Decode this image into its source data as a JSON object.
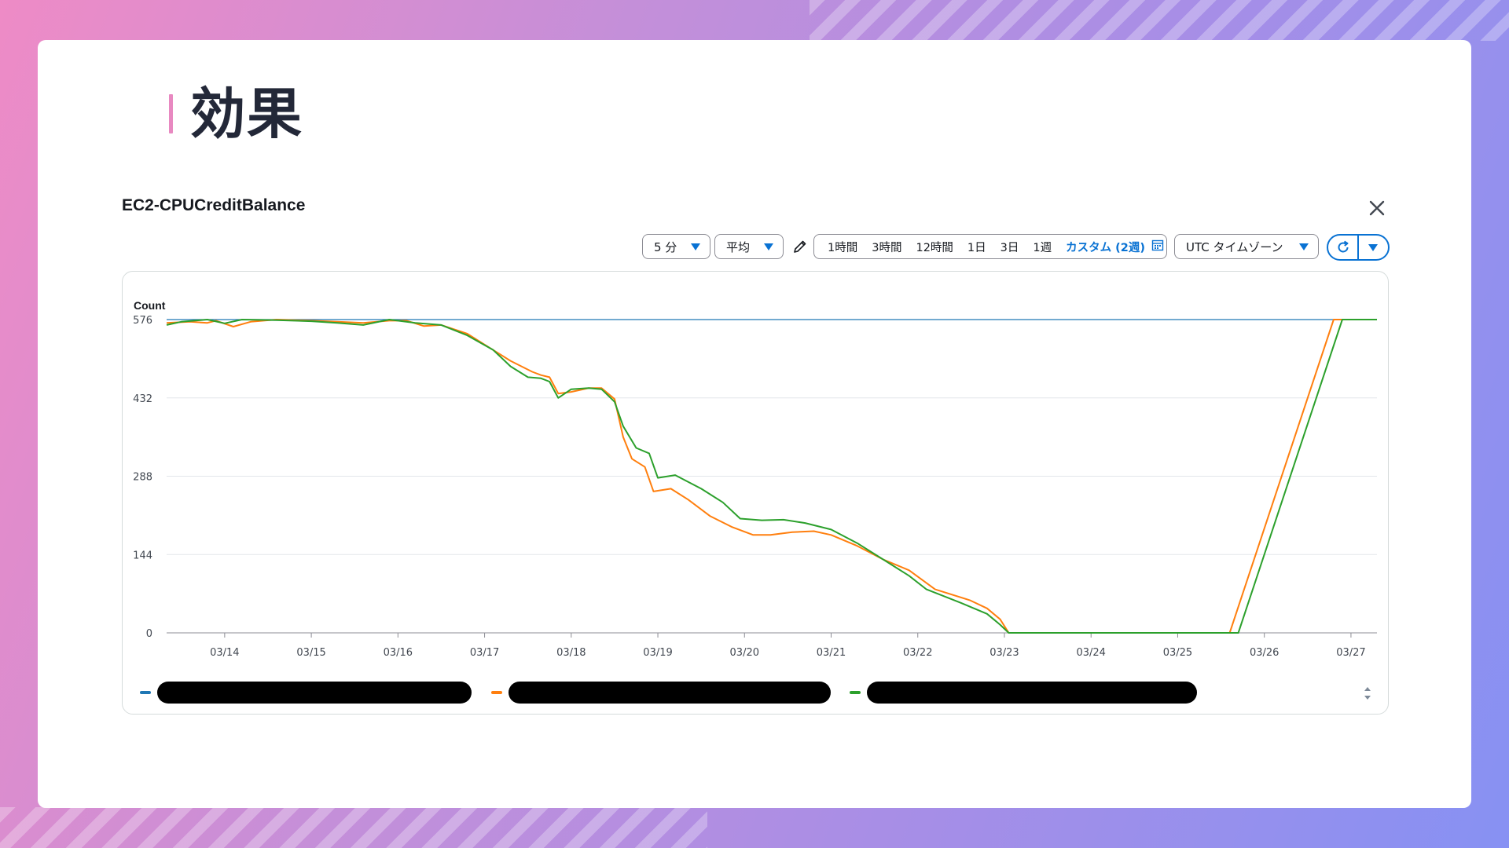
{
  "page": {
    "title": "効果"
  },
  "widget": {
    "title": "EC2-CPUCreditBalance",
    "toolbar": {
      "period": "5 分",
      "statistic": "平均",
      "ranges": [
        "1時間",
        "3時間",
        "12時間",
        "1日",
        "3日",
        "1週"
      ],
      "custom_range": "カスタム (2週)",
      "timezone": "UTC タイムゾーン"
    },
    "icons": {
      "close": "close-icon",
      "edit": "pencil-icon",
      "calendar": "calendar-icon",
      "refresh": "refresh-icon",
      "dropdown": "caret-down-icon"
    }
  },
  "colors": {
    "accent": "#0972d3",
    "series_blue": "#1f77b4",
    "series_orange": "#ff7f0e",
    "series_green": "#2ca02c",
    "title_bar": "#e889c1"
  },
  "chart_data": {
    "type": "line",
    "ylabel": "Count",
    "ylim": [
      0,
      576
    ],
    "yticks": [
      0,
      144,
      288,
      432,
      576
    ],
    "xlim": [
      13.33,
      27.3
    ],
    "xtick_labels": [
      "03/14",
      "03/15",
      "03/16",
      "03/17",
      "03/18",
      "03/19",
      "03/20",
      "03/21",
      "03/22",
      "03/23",
      "03/24",
      "03/25",
      "03/26",
      "03/27"
    ],
    "xtick_values": [
      14,
      15,
      16,
      17,
      18,
      19,
      20,
      21,
      22,
      23,
      24,
      25,
      26,
      27
    ],
    "grid": true,
    "legend_position": "bottom",
    "series": [
      {
        "color": "#1f77b4",
        "points": [
          [
            13.33,
            576
          ],
          [
            27.3,
            576
          ]
        ]
      },
      {
        "color": "#ff7f0e",
        "points": [
          [
            13.33,
            570
          ],
          [
            13.6,
            572
          ],
          [
            13.8,
            570
          ],
          [
            13.9,
            574
          ],
          [
            14.1,
            563
          ],
          [
            14.3,
            572
          ],
          [
            14.6,
            576
          ],
          [
            15.0,
            574
          ],
          [
            15.3,
            572
          ],
          [
            15.6,
            570
          ],
          [
            15.9,
            574
          ],
          [
            16.1,
            574
          ],
          [
            16.3,
            564
          ],
          [
            16.5,
            566
          ],
          [
            16.8,
            550
          ],
          [
            17.1,
            520
          ],
          [
            17.3,
            500
          ],
          [
            17.55,
            480
          ],
          [
            17.65,
            474
          ],
          [
            17.75,
            470
          ],
          [
            17.85,
            440
          ],
          [
            18.0,
            443
          ],
          [
            18.2,
            450
          ],
          [
            18.35,
            450
          ],
          [
            18.5,
            430
          ],
          [
            18.6,
            360
          ],
          [
            18.7,
            320
          ],
          [
            18.85,
            305
          ],
          [
            18.95,
            260
          ],
          [
            19.15,
            265
          ],
          [
            19.35,
            245
          ],
          [
            19.6,
            215
          ],
          [
            19.85,
            195
          ],
          [
            20.1,
            180
          ],
          [
            20.3,
            180
          ],
          [
            20.55,
            185
          ],
          [
            20.8,
            187
          ],
          [
            21.0,
            180
          ],
          [
            21.3,
            160
          ],
          [
            21.6,
            135
          ],
          [
            21.9,
            115
          ],
          [
            22.2,
            80
          ],
          [
            22.6,
            60
          ],
          [
            22.8,
            45
          ],
          [
            22.95,
            25
          ],
          [
            23.05,
            0
          ],
          [
            25.6,
            0
          ],
          [
            26.8,
            576
          ],
          [
            27.3,
            576
          ]
        ]
      },
      {
        "color": "#2ca02c",
        "points": [
          [
            13.33,
            566
          ],
          [
            13.5,
            572
          ],
          [
            13.8,
            576
          ],
          [
            14.0,
            569
          ],
          [
            14.2,
            576
          ],
          [
            14.6,
            575
          ],
          [
            15.0,
            573
          ],
          [
            15.3,
            570
          ],
          [
            15.6,
            566
          ],
          [
            15.9,
            576
          ],
          [
            16.2,
            570
          ],
          [
            16.5,
            566
          ],
          [
            16.8,
            547
          ],
          [
            17.1,
            520
          ],
          [
            17.3,
            490
          ],
          [
            17.5,
            470
          ],
          [
            17.65,
            468
          ],
          [
            17.75,
            462
          ],
          [
            17.85,
            432
          ],
          [
            18.0,
            448
          ],
          [
            18.2,
            450
          ],
          [
            18.35,
            448
          ],
          [
            18.5,
            425
          ],
          [
            18.6,
            380
          ],
          [
            18.75,
            340
          ],
          [
            18.9,
            330
          ],
          [
            19.0,
            285
          ],
          [
            19.2,
            290
          ],
          [
            19.5,
            265
          ],
          [
            19.75,
            240
          ],
          [
            19.95,
            210
          ],
          [
            20.2,
            207
          ],
          [
            20.45,
            208
          ],
          [
            20.7,
            202
          ],
          [
            21.0,
            190
          ],
          [
            21.3,
            165
          ],
          [
            21.6,
            135
          ],
          [
            21.9,
            105
          ],
          [
            22.1,
            80
          ],
          [
            22.5,
            55
          ],
          [
            22.8,
            35
          ],
          [
            22.95,
            15
          ],
          [
            23.05,
            0
          ],
          [
            25.7,
            0
          ],
          [
            26.9,
            576
          ],
          [
            27.3,
            576
          ]
        ]
      }
    ]
  }
}
